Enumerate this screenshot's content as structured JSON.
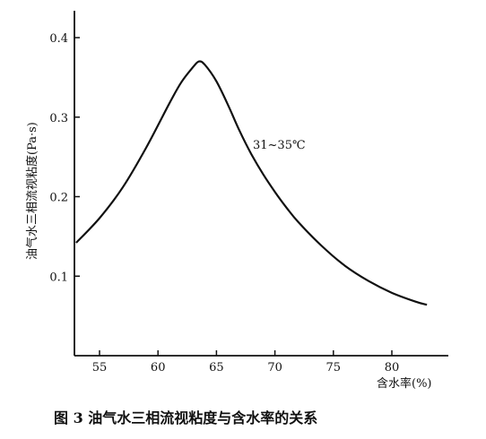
{
  "chart_data": {
    "type": "line",
    "title": "图 3  油气水三相流视粘度与含水率的关系",
    "xlabel": "含水率(%)",
    "ylabel": "油气水三相流视粘度(Pa·s)",
    "xlim": [
      53,
      85
    ],
    "ylim": [
      0,
      0.42
    ],
    "xticks": [
      55,
      60,
      65,
      70,
      75,
      80
    ],
    "yticks": [
      0.1,
      0.2,
      0.3,
      0.4
    ],
    "ytick_labels": [
      "0.1",
      "0.2",
      "0.3",
      "0.4"
    ],
    "grid": false,
    "series": [
      {
        "name": "31~35℃",
        "x": [
          53,
          55,
          57,
          59,
          61,
          62,
          63,
          63.5,
          64,
          65,
          66,
          67,
          68,
          69,
          70,
          71,
          72,
          74,
          76,
          78,
          80,
          82,
          83
        ],
        "y": [
          0.142,
          0.173,
          0.212,
          0.262,
          0.318,
          0.344,
          0.363,
          0.37,
          0.366,
          0.345,
          0.315,
          0.282,
          0.253,
          0.228,
          0.206,
          0.186,
          0.168,
          0.138,
          0.113,
          0.094,
          0.079,
          0.068,
          0.064
        ]
      }
    ],
    "annotation": "31~35℃"
  }
}
